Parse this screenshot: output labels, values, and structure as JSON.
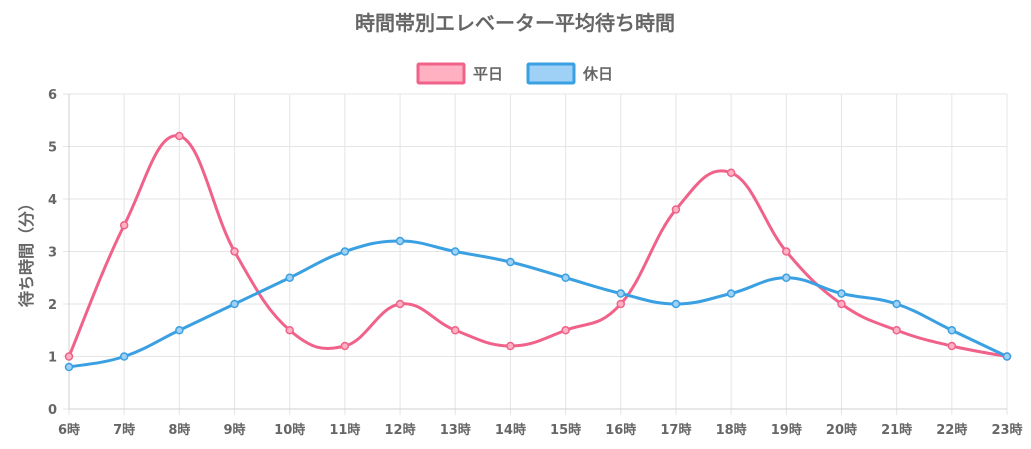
{
  "chart_data": {
    "type": "line",
    "title": "時間帯別エレベーター平均待ち時間",
    "ylabel": "待ち時間（分）",
    "xlabel": "",
    "categories": [
      "6時",
      "7時",
      "8時",
      "9時",
      "10時",
      "11時",
      "12時",
      "13時",
      "14時",
      "15時",
      "16時",
      "17時",
      "18時",
      "19時",
      "20時",
      "21時",
      "22時",
      "23時"
    ],
    "ylim": [
      0,
      6
    ],
    "yticks": [
      0,
      1,
      2,
      3,
      4,
      5,
      6
    ],
    "grid": true,
    "legend_position": "top-center",
    "series": [
      {
        "name": "平日",
        "color": "#f0628a",
        "fill": "#ffb0c1",
        "values": [
          1.0,
          3.5,
          5.2,
          3.0,
          1.5,
          1.2,
          2.0,
          1.5,
          1.2,
          1.5,
          2.0,
          3.8,
          4.5,
          3.0,
          2.0,
          1.5,
          1.2,
          1.0
        ]
      },
      {
        "name": "休日",
        "color": "#3aa0e2",
        "fill": "#9fd0f5",
        "values": [
          0.8,
          1.0,
          1.5,
          2.0,
          2.5,
          3.0,
          3.2,
          3.0,
          2.8,
          2.5,
          2.2,
          2.0,
          2.2,
          2.5,
          2.2,
          2.0,
          1.5,
          1.0
        ]
      }
    ]
  }
}
